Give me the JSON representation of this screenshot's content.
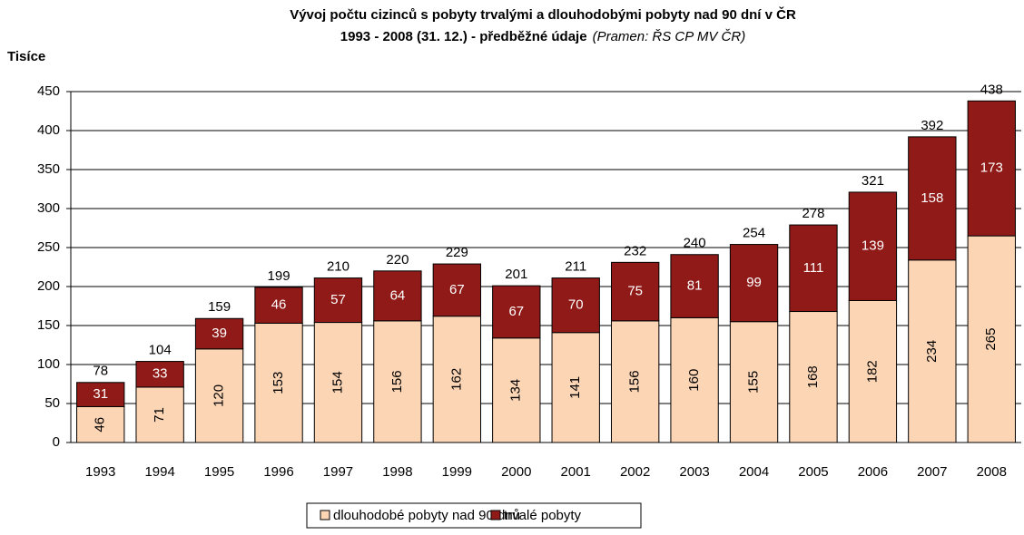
{
  "chart_data": {
    "type": "stacked_bar",
    "title": [
      "Vývoj počtu cizinců s pobyty trvalými a dlouhodobými pobyty nad 90 dní v ČR",
      "1993 - 2008 (31. 12.) - předběžné údaje"
    ],
    "source": "(Pramen: ŘS CP MV ČR)",
    "ylabel": "Tisíce",
    "categories": [
      "1993",
      "1994",
      "1995",
      "1996",
      "1997",
      "1998",
      "1999",
      "2000",
      "2001",
      "2002",
      "2003",
      "2004",
      "2005",
      "2006",
      "2007",
      "2008"
    ],
    "series": [
      {
        "name": "dlouhodobé pobyty nad 90 dnů",
        "color": "#fcd5b5",
        "values": [
          46,
          71,
          120,
          153,
          154,
          156,
          162,
          134,
          141,
          156,
          160,
          155,
          168,
          182,
          234,
          265
        ]
      },
      {
        "name": "trvalé pobyty",
        "color": "#8f1a17",
        "values": [
          31,
          33,
          39,
          46,
          57,
          64,
          67,
          67,
          70,
          75,
          81,
          99,
          111,
          139,
          158,
          173
        ]
      }
    ],
    "totals": [
      78,
      104,
      159,
      199,
      210,
      220,
      229,
      201,
      211,
      232,
      240,
      254,
      278,
      321,
      392,
      438
    ],
    "ylim": [
      0,
      450
    ],
    "yticks": [
      0,
      50,
      100,
      150,
      200,
      250,
      300,
      350,
      400,
      450
    ],
    "grid": true
  }
}
